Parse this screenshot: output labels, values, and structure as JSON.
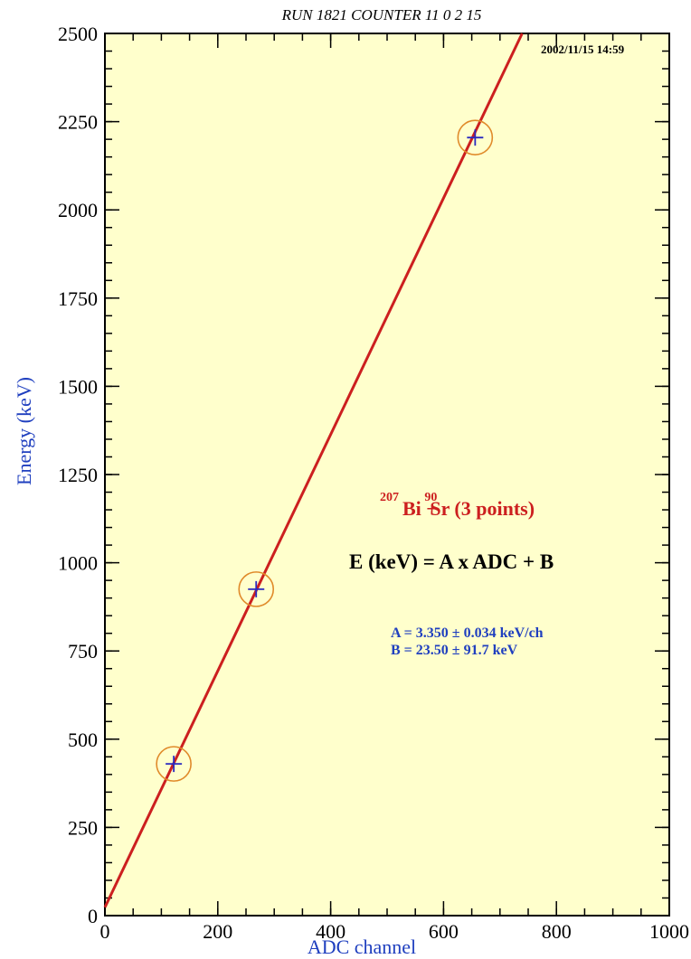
{
  "chart_data": {
    "type": "scatter",
    "title": "RUN 1821 COUNTER 11  0  2  15",
    "timestamp": "2002/11/15  14:59",
    "xlabel": "ADC channel",
    "ylabel": "Energy (keV)",
    "xlim": [
      0,
      1000
    ],
    "ylim": [
      0,
      2500
    ],
    "x_ticks": [
      0,
      200,
      400,
      600,
      800,
      1000
    ],
    "y_ticks": [
      0,
      250,
      500,
      750,
      1000,
      1250,
      1500,
      1750,
      2000,
      2250,
      2500
    ],
    "x_minor_step": 50,
    "y_minor_step": 50,
    "points": [
      {
        "x": 122,
        "y": 430
      },
      {
        "x": 268,
        "y": 925
      },
      {
        "x": 656,
        "y": 2205
      }
    ],
    "fit": {
      "slope": 3.35,
      "intercept": 23.5
    },
    "annotations": {
      "source_iso1": "207",
      "source_el1": "Bi + ",
      "source_iso2": "90",
      "source_el2": "Sr (3 points)",
      "formula": "E (keV) = A x ADC + B",
      "param_a": "A = 3.350 ± 0.034 keV/ch",
      "param_b": "B = 23.50 ± 91.7 keV"
    },
    "colors": {
      "background": "#ffffcc",
      "fit_line": "#cc1f1f",
      "marker_circle": "#e08a2a",
      "marker_cross": "#2a2abf",
      "axis_title": "#1f3fbf"
    }
  }
}
